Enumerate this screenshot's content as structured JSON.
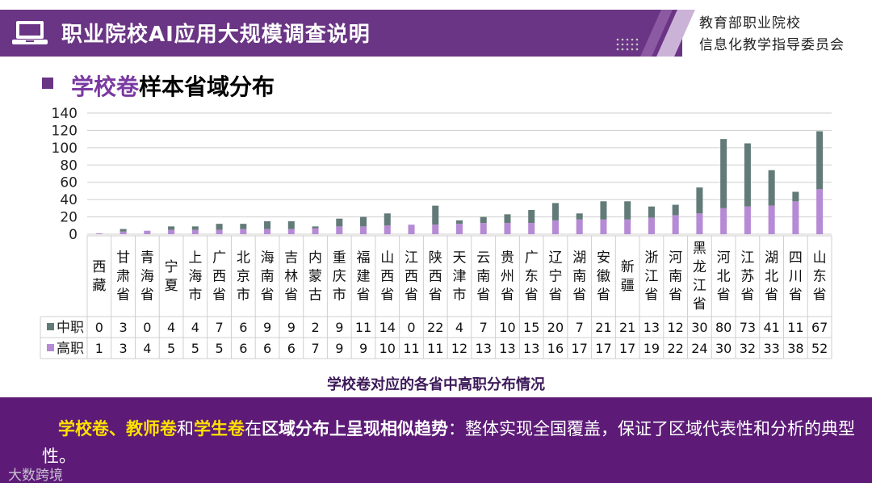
{
  "header": {
    "title": "职业院校AI应用大规模调查说明",
    "org_line1": "教育部职业院校",
    "org_line2": "信息化教学指导委员会"
  },
  "section": {
    "title_highlight": "学校卷",
    "title_rest": "样本省域分布"
  },
  "chart_caption": "学校卷对应的各省中高职分布情况",
  "footer": {
    "kw1": "学校卷",
    "sep1": "、",
    "kw2": "教师卷",
    "sep2": "和",
    "kw3": "学生卷",
    "mid": "在",
    "bold_phrase": "区域分布上呈现相似趋势",
    "rest": "：整体实现全国覆盖，保证了区域代表性和分析的典型性。"
  },
  "watermark": "大数跨境",
  "colors": {
    "header_purple": "#6a3584",
    "footer_purple": "#5d1b77",
    "zhongzhi": "#637b78",
    "gaozhi": "#b68ad4",
    "highlight_yellow": "#ffe000"
  },
  "chart_data": {
    "type": "bar",
    "stacked": true,
    "ylim": [
      0,
      140
    ],
    "yticks": [
      0,
      20,
      40,
      60,
      80,
      100,
      120,
      140
    ],
    "grid": true,
    "legend": "data-table",
    "categories": [
      "西藏",
      "甘肃省",
      "青海省",
      "宁夏",
      "上海市",
      "广西省",
      "北京市",
      "海南省",
      "吉林省",
      "内蒙古",
      "重庆市",
      "福建省",
      "山西省",
      "江西省",
      "陕西省",
      "天津市",
      "云南省",
      "贵州省",
      "广东省",
      "辽宁省",
      "湖南省",
      "安徽省",
      "新疆",
      "浙江省",
      "河南省",
      "黑龙江省",
      "河北省",
      "江苏省",
      "湖北省",
      "四川省",
      "山东省"
    ],
    "series": [
      {
        "name": "中职",
        "values": [
          0,
          3,
          0,
          4,
          4,
          7,
          6,
          9,
          9,
          2,
          9,
          11,
          14,
          0,
          22,
          4,
          7,
          10,
          15,
          20,
          7,
          21,
          21,
          13,
          12,
          30,
          80,
          73,
          41,
          11,
          67
        ]
      },
      {
        "name": "高职",
        "values": [
          1,
          3,
          4,
          5,
          5,
          5,
          6,
          6,
          6,
          7,
          9,
          9,
          10,
          11,
          11,
          12,
          13,
          13,
          13,
          16,
          17,
          17,
          17,
          19,
          22,
          24,
          30,
          32,
          33,
          38,
          52
        ]
      }
    ]
  }
}
